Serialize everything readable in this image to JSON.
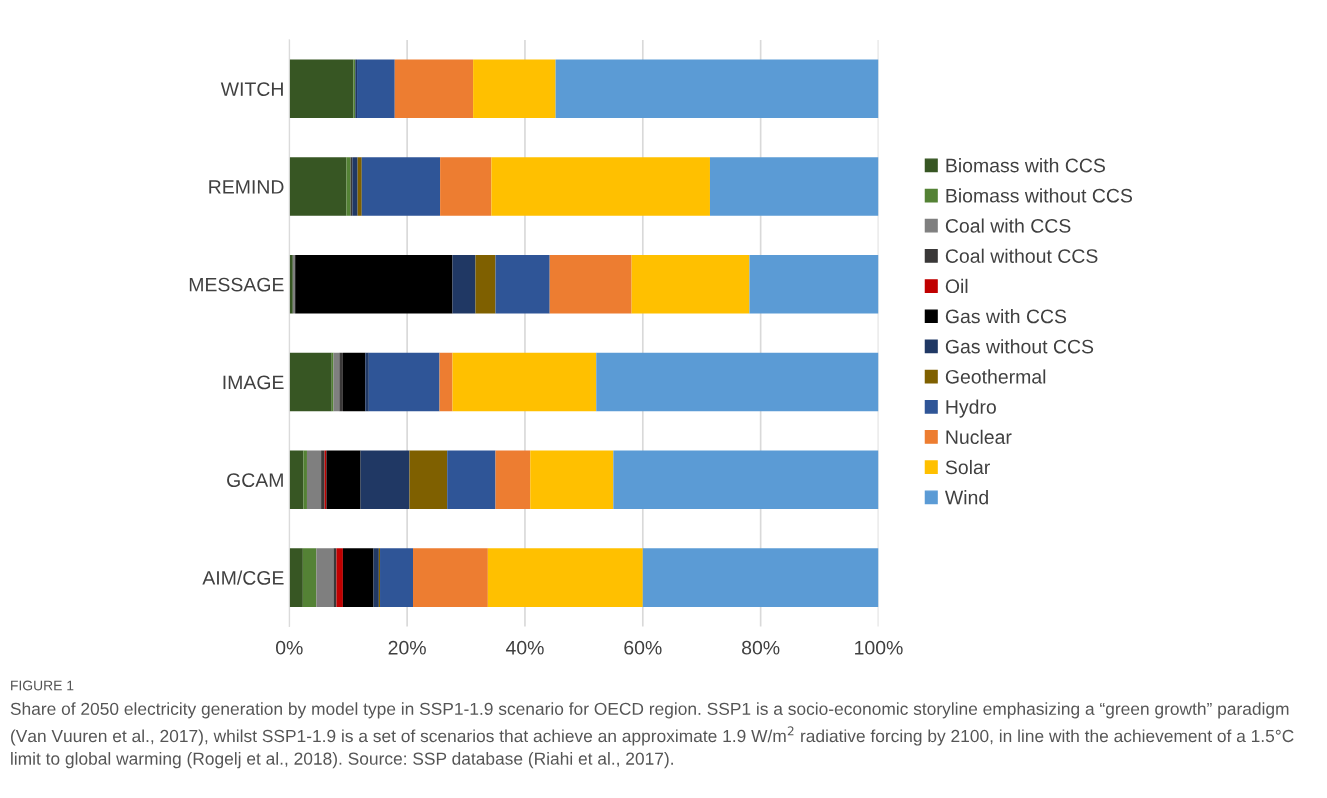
{
  "chart_data": {
    "type": "bar",
    "orientation": "horizontal",
    "stacked": true,
    "categories": [
      "WITCH",
      "REMIND",
      "MESSAGE",
      "IMAGE",
      "GCAM",
      "AIM/CGE"
    ],
    "series": [
      {
        "name": "Biomass with CCS",
        "color": "#375623",
        "values": [
          10.9,
          9.7,
          0.6,
          7.2,
          2.4,
          2.3
        ]
      },
      {
        "name": "Biomass without CCS",
        "color": "#548235",
        "values": [
          0.3,
          0.7,
          0,
          0.3,
          0.6,
          2.3
        ]
      },
      {
        "name": "Coal with CCS",
        "color": "#7f7f7f",
        "values": [
          0,
          0,
          0.4,
          1.0,
          2.4,
          2.9
        ]
      },
      {
        "name": "Coal without CCS",
        "color": "#3a3838",
        "values": [
          0,
          0.3,
          0,
          0.6,
          0.6,
          0.5
        ]
      },
      {
        "name": "Oil",
        "color": "#c00000",
        "values": [
          0,
          0,
          0,
          0,
          0.3,
          1.1
        ]
      },
      {
        "name": "Gas with CCS",
        "color": "#000000",
        "values": [
          0,
          0,
          26.7,
          3.8,
          5.8,
          5.2
        ]
      },
      {
        "name": "Gas without CCS",
        "color": "#203864",
        "values": [
          0.3,
          0.9,
          3.9,
          0.6,
          8.3,
          0.9
        ]
      },
      {
        "name": "Geothermal",
        "color": "#7f6000",
        "values": [
          0,
          0.7,
          3.4,
          0,
          6.4,
          0.2
        ]
      },
      {
        "name": "Hydro",
        "color": "#2f5597",
        "values": [
          6.4,
          13.3,
          9.2,
          12.0,
          8.2,
          5.6
        ]
      },
      {
        "name": "Nuclear",
        "color": "#ed7d31",
        "values": [
          13.3,
          8.7,
          13.9,
          2.2,
          5.9,
          12.7
        ]
      },
      {
        "name": "Solar",
        "color": "#ffc000",
        "values": [
          14.0,
          37.1,
          20.0,
          24.4,
          14.1,
          26.3
        ]
      },
      {
        "name": "Wind",
        "color": "#5b9bd5",
        "values": [
          54.8,
          28.6,
          21.9,
          47.9,
          45.0,
          40.0
        ]
      }
    ],
    "xlim": [
      0,
      100
    ],
    "xticks": [
      {
        "value": 0,
        "label": "0%"
      },
      {
        "value": 20,
        "label": "20%"
      },
      {
        "value": 40,
        "label": "40%"
      },
      {
        "value": 60,
        "label": "60%"
      },
      {
        "value": 80,
        "label": "80%"
      },
      {
        "value": 100,
        "label": "100%"
      }
    ],
    "grid": "x",
    "legend": "right",
    "annotations": [
      "FIGURE 1",
      "Share of 2050 electricity generation by model type in SSP1-1.9 scenario for OECD region. SSP1 is a socio-economic storyline emphasizing a “green growth” paradigm (Van Vuuren et al., 2017), whilst SSP1-1.9 is a set of scenarios that achieve an approximate 1.9 W/m$^{2}$ radiative forcing by 2100, in line with the achievement of a 1.5°C limit to global warming (Rogelj et al., 2018). Source: SSP database (Riahi et al., 2017)."
    ]
  }
}
